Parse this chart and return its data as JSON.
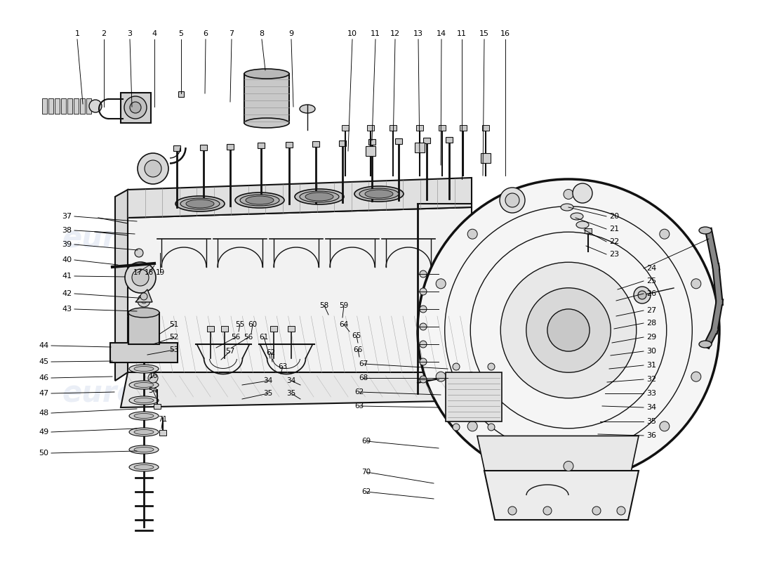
{
  "fig_w": 11.0,
  "fig_h": 8.0,
  "dpi": 100,
  "bg": "#ffffff",
  "dc": "#111111",
  "lc": "#000000",
  "wm_color": "#c8d4e8",
  "wm_alpha": 0.38,
  "wm_text": "eurospares",
  "fs": 8.0,
  "lw": 1.0,
  "top_labels": [
    [
      "1",
      110,
      52
    ],
    [
      "2",
      148,
      52
    ],
    [
      "3",
      185,
      52
    ],
    [
      "4",
      220,
      52
    ],
    [
      "5",
      258,
      52
    ],
    [
      "6",
      293,
      52
    ],
    [
      "7",
      330,
      52
    ],
    [
      "8",
      373,
      52
    ],
    [
      "9",
      415,
      52
    ],
    [
      "10",
      502,
      52
    ],
    [
      "11",
      535,
      52
    ],
    [
      "12",
      563,
      52
    ],
    [
      "13",
      596,
      52
    ],
    [
      "14",
      629,
      52
    ],
    [
      "11",
      658,
      52
    ],
    [
      "15",
      690,
      52
    ],
    [
      "16",
      720,
      52
    ]
  ],
  "left_labels": [
    [
      "37",
      88,
      308
    ],
    [
      "38",
      88,
      330
    ],
    [
      "39",
      88,
      352
    ],
    [
      "40",
      88,
      374
    ],
    [
      "41",
      88,
      396
    ],
    [
      "42",
      88,
      418
    ],
    [
      "43",
      88,
      440
    ],
    [
      "44",
      55,
      490
    ],
    [
      "45",
      55,
      515
    ],
    [
      "46",
      55,
      540
    ],
    [
      "47",
      55,
      565
    ],
    [
      "48",
      55,
      593
    ],
    [
      "49",
      55,
      620
    ],
    [
      "50",
      55,
      650
    ]
  ],
  "right_labels": [
    [
      "20",
      880,
      310
    ],
    [
      "21",
      880,
      328
    ],
    [
      "22",
      880,
      346
    ],
    [
      "23",
      880,
      364
    ],
    [
      "24",
      930,
      384
    ],
    [
      "25",
      930,
      402
    ],
    [
      "26",
      930,
      420
    ],
    [
      "27",
      930,
      445
    ],
    [
      "28",
      930,
      465
    ],
    [
      "29",
      930,
      485
    ],
    [
      "30",
      930,
      505
    ],
    [
      "31",
      930,
      525
    ],
    [
      "32",
      930,
      545
    ],
    [
      "33",
      930,
      565
    ],
    [
      "34",
      930,
      585
    ],
    [
      "35",
      930,
      605
    ],
    [
      "36",
      930,
      625
    ]
  ],
  "center_labels": [
    [
      "51",
      248,
      470
    ],
    [
      "52",
      248,
      492
    ],
    [
      "53",
      248,
      514
    ],
    [
      "16",
      218,
      536
    ],
    [
      "54",
      218,
      558
    ],
    [
      "71",
      232,
      600
    ],
    [
      "17",
      196,
      388
    ],
    [
      "18",
      212,
      388
    ],
    [
      "19",
      228,
      388
    ],
    [
      "55",
      342,
      468
    ],
    [
      "56",
      336,
      488
    ],
    [
      "56",
      354,
      488
    ],
    [
      "57",
      328,
      508
    ],
    [
      "58",
      468,
      440
    ],
    [
      "59",
      490,
      440
    ],
    [
      "60",
      360,
      468
    ],
    [
      "61",
      375,
      488
    ],
    [
      "62",
      386,
      510
    ],
    [
      "63",
      404,
      530
    ],
    [
      "64",
      490,
      468
    ],
    [
      "65",
      505,
      488
    ],
    [
      "66",
      510,
      505
    ],
    [
      "67",
      518,
      522
    ],
    [
      "68",
      518,
      542
    ],
    [
      "34",
      382,
      548
    ],
    [
      "35",
      382,
      566
    ],
    [
      "34",
      414,
      548
    ],
    [
      "35",
      414,
      566
    ],
    [
      "62",
      512,
      560
    ],
    [
      "63",
      512,
      580
    ],
    [
      "69",
      525,
      632
    ],
    [
      "70",
      525,
      668
    ],
    [
      "62",
      525,
      700
    ]
  ]
}
